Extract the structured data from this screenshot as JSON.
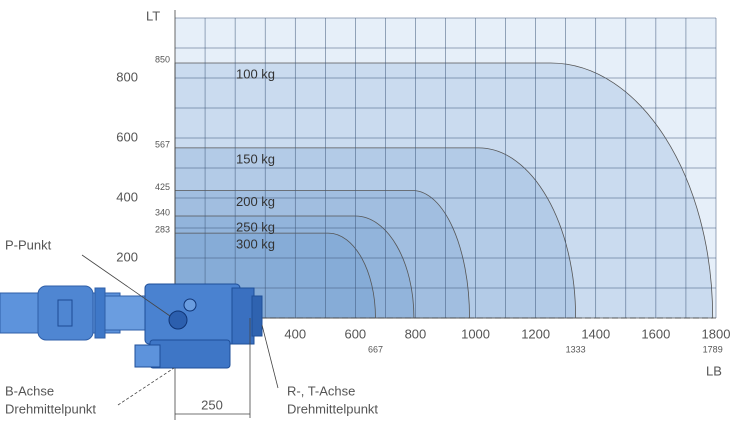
{
  "chart_data": {
    "type": "load_diagram",
    "y_axis_label": "LT",
    "x_axis_label": "LB",
    "xlim": [
      0,
      1800
    ],
    "ylim": [
      0,
      1000
    ],
    "xticks": [
      400,
      600,
      800,
      1000,
      1200,
      1400,
      1600,
      1800
    ],
    "yticks": [
      200,
      400,
      600,
      800
    ],
    "xgrid": [
      100,
      200,
      300,
      400,
      500,
      600,
      700,
      800,
      900,
      1000,
      1100,
      1200,
      1300,
      1400,
      1500,
      1600,
      1700,
      1800
    ],
    "ygrid": [
      100,
      200,
      300,
      400,
      500,
      600,
      700,
      800,
      900,
      1000
    ],
    "grid": true,
    "color": "#5b8cc8",
    "series": [
      {
        "name": "100 kg",
        "height": 850,
        "flat_to": 1250,
        "reach": 1789,
        "reach_printed": true
      },
      {
        "name": "150 kg",
        "height": 567,
        "flat_to": 1010,
        "reach": 1333,
        "reach_printed": true
      },
      {
        "name": "200 kg",
        "height": 425,
        "flat_to": 790,
        "reach": 980,
        "reach_printed": false
      },
      {
        "name": "250 kg",
        "height": 340,
        "flat_to": 600,
        "reach": 795,
        "reach_printed": false
      },
      {
        "name": "300 kg",
        "height": 283,
        "flat_to": 510,
        "reach": 667,
        "reach_printed": true
      }
    ],
    "annotations": {
      "p_point": "P-Punkt",
      "b_axis": "B-Achse",
      "b_center": "Drehmittelpunkt",
      "rt_axis": "R-, T-Achse",
      "rt_center": "Drehmittelpunkt",
      "dimension": 250
    }
  }
}
